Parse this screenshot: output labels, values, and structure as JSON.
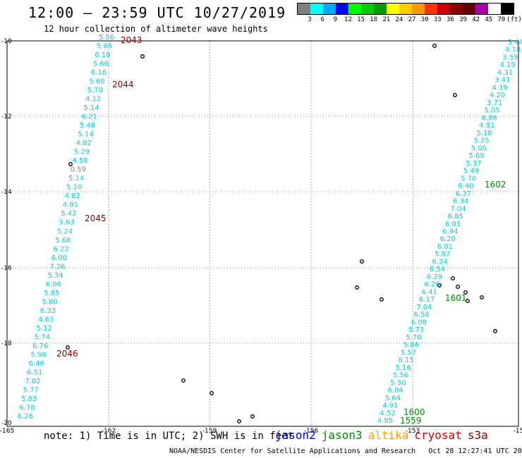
{
  "header": {
    "title": "12:00 – 23:59 UTC 10/27/2019",
    "subtitle": "12 hour collection of altimeter wave heights"
  },
  "legend": {
    "colors": [
      "#808080",
      "#00ffff",
      "#00aaff",
      "#0000ff",
      "#00ff00",
      "#00cc00",
      "#009900",
      "#ffff00",
      "#ffcc00",
      "#ff9900",
      "#ff3300",
      "#cc0000",
      "#880000",
      "#660000",
      "#aa00aa",
      "#ffffff",
      "#000000"
    ],
    "labels": [
      "3",
      "6",
      "9",
      "12",
      "15",
      "18",
      "21",
      "24",
      "27",
      "30",
      "33",
      "36",
      "39",
      "42",
      "45",
      "70",
      "(ft)"
    ]
  },
  "axes": {
    "lon_ticks": [
      "-165",
      "-162",
      "-159",
      "-156",
      "-153",
      "-15"
    ],
    "lat_ticks": [
      "-10",
      "-12",
      "-14",
      "-16",
      "-18",
      "-20"
    ]
  },
  "tracks": {
    "west_values": [
      "5.56",
      "5.65",
      "6.18",
      "5.66",
      "6.16",
      "5.60",
      "5.70",
      "4.12",
      "5.14",
      "6.21",
      "5.48",
      "5.14",
      "4.82",
      "5.29",
      "4.58",
      "0.59",
      "5.14",
      "5.10",
      "4.82",
      "4.91",
      "5.42",
      "5.63",
      "5.24",
      "5.68",
      "6.22",
      "6.00",
      "7.26",
      "5.34",
      "6.06",
      "5.85",
      "5.80",
      "6.33",
      "4.63",
      "5.12",
      "5.74",
      "6.76",
      "5.98",
      "6.46",
      "6.51",
      "7.02",
      "5.77",
      "5.83",
      "6.78",
      "6.26"
    ],
    "west_times": [
      "2043",
      "2044",
      "2045",
      "2046"
    ],
    "east_values": [
      "3.44",
      "4.18",
      "3.55",
      "4.19",
      "4.31",
      "3.41",
      "4.19",
      "4.20",
      "3.71",
      "5.05",
      "6.86",
      "4.91",
      "5.18",
      "5.25",
      "5.05",
      "5.69",
      "5.37",
      "5.49",
      "5.70",
      "6.40",
      "6.37",
      "6.34",
      "7.04",
      "6.85",
      "6.01",
      "6.94",
      "6.20",
      "6.01",
      "5.87",
      "6.24",
      "6.54",
      "6.29",
      "6.26",
      "6.41",
      "6.17",
      "7.04",
      "6.58",
      "6.08",
      "5.73",
      "5.70",
      "5.86",
      "5.57",
      "6.15",
      "5.16",
      "5.56",
      "5.30",
      "6.04",
      "5.64",
      "4.91",
      "4.52",
      "4.95"
    ],
    "east_times": [
      "1602",
      "1601",
      "1600",
      "1559"
    ]
  },
  "footer": {
    "note": "note: 1) Time is in UTC; 2) SWH is in feet",
    "satellites": [
      {
        "name": "jason2",
        "color": "#0000cc"
      },
      {
        "name": "jason3",
        "color": "#008800"
      },
      {
        "name": "altika",
        "color": "#ff9900"
      },
      {
        "name": "cryosat",
        "color": "#cc0000"
      },
      {
        "name": "s3a",
        "color": "#880000"
      }
    ],
    "credit": "NOAA/NESDIS Center for Satellite Applications and Research",
    "timestamp": "Oct 28 12:27:41 UTC 2019"
  }
}
